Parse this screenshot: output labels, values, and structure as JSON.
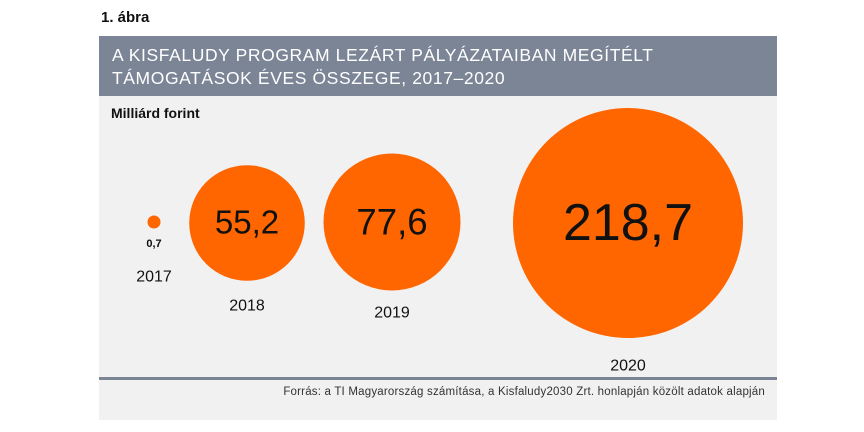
{
  "figure_label": "1.  ábra",
  "title_line1": "A KISFALUDY PROGRAM LEZÁRT PÁLYÁZATAIBAN MEGÍTÉLT",
  "title_line2": "TÁMOGATÁSOK ÉVES ÖSSZEGE, 2017–2020",
  "unit_label": "Milliárd forint",
  "source": "Forrás: a TI Magyarország számítása, a Kisfaludy2030 Zrt. honlapján közölt adatok alapján",
  "colors": {
    "bubble": "#ff6600",
    "title_bar": "#7b8596",
    "panel": "#f1f1f1"
  },
  "chart_data": {
    "type": "bubble",
    "title": "A KISFALUDY PROGRAM LEZÁRT PÁLYÁZATAIBAN MEGÍTÉLT TÁMOGATÁSOK ÉVES ÖSSZEGE, 2017–2020",
    "ylabel": "Milliárd forint",
    "categories": [
      "2017",
      "2018",
      "2019",
      "2020"
    ],
    "values": [
      0.7,
      55.2,
      77.6,
      218.7
    ],
    "value_labels": [
      "0,7",
      "55,2",
      "77,6",
      "218,7"
    ]
  }
}
